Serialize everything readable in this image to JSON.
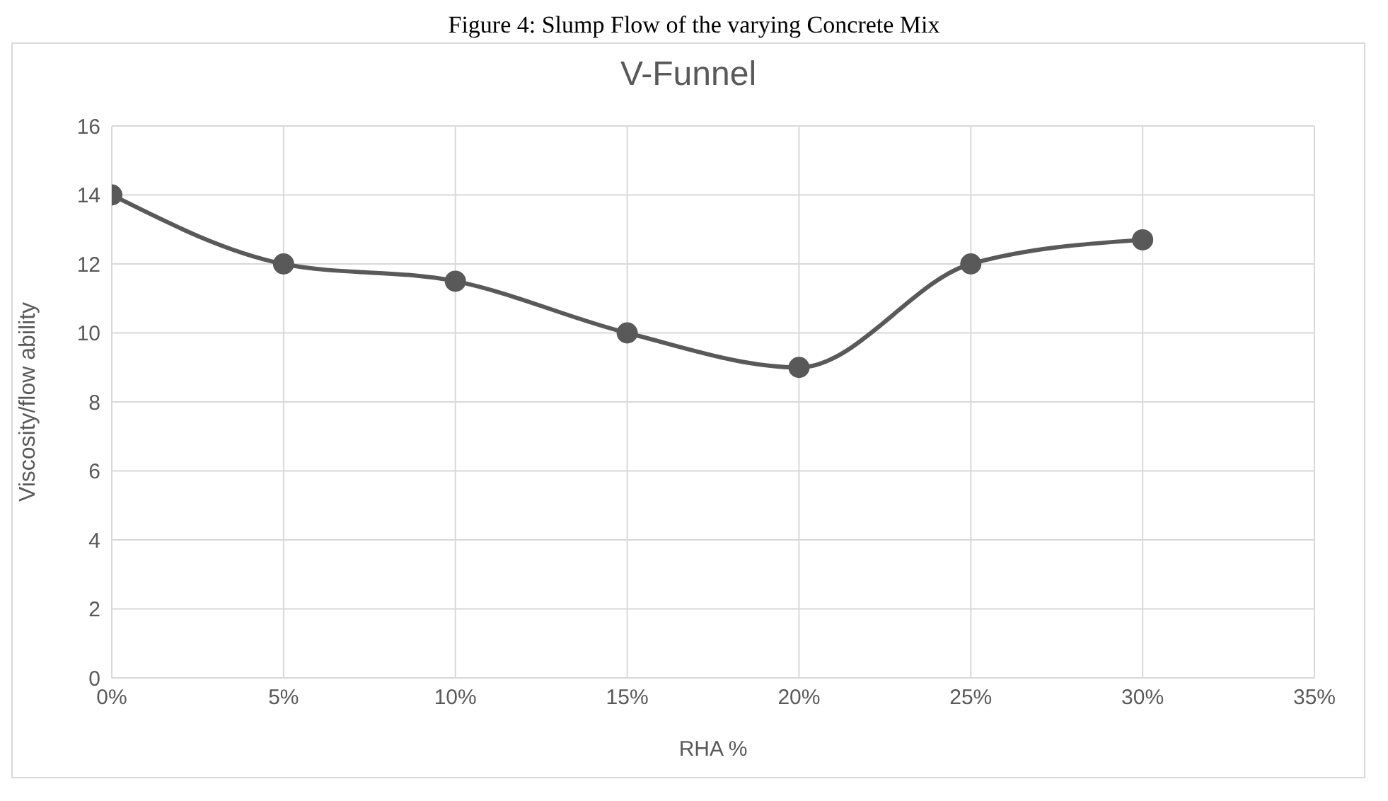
{
  "chart_data": {
    "type": "line",
    "title": "V-Funnel",
    "xlabel": "RHA %",
    "ylabel": "Viscosity/flow ability",
    "annotations": [
      "Figure 4: Slump Flow of the varying Concrete Mix"
    ],
    "x": [
      0,
      5,
      10,
      15,
      20,
      25,
      30
    ],
    "series": [
      {
        "color": "#595959",
        "values": [
          14,
          12,
          11.5,
          10,
          9,
          12,
          12.7
        ]
      }
    ],
    "xlim": [
      0,
      35
    ],
    "xticks": [
      {
        "value": 0,
        "label": "0%"
      },
      {
        "value": 5,
        "label": "5%"
      },
      {
        "value": 10,
        "label": "10%"
      },
      {
        "value": 15,
        "label": "15%"
      },
      {
        "value": 20,
        "label": "20%"
      },
      {
        "value": 25,
        "label": "25%"
      },
      {
        "value": 30,
        "label": "30%"
      },
      {
        "value": 35,
        "label": "35%"
      }
    ],
    "ylim": [
      0,
      16
    ],
    "yticks": [
      0,
      2,
      4,
      6,
      8,
      10,
      12,
      14,
      16
    ],
    "grid": true,
    "marker": "circle",
    "line_style": "solid",
    "legend": false
  }
}
